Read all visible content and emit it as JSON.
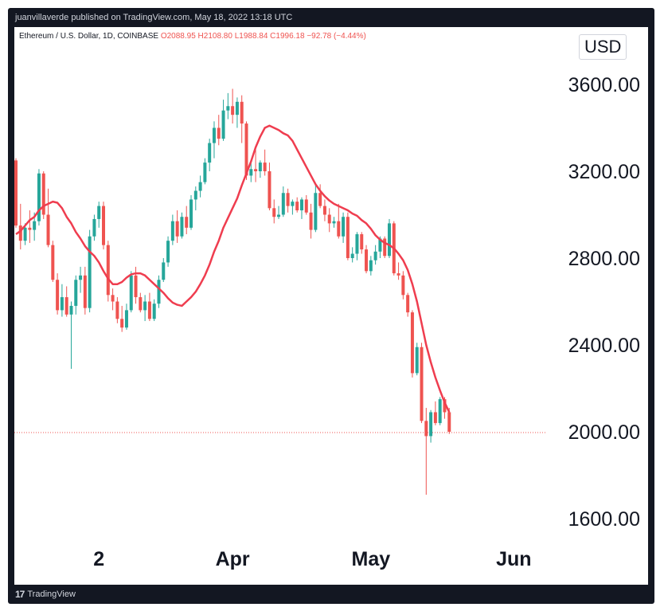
{
  "header": {
    "publisher_line": "juanvillaverde published on TradingView.com, May 18, 2022 13:18 UTC"
  },
  "symbol": {
    "name": "Ethereum / U.S. Dollar, 1D, COINBASE",
    "ohlc": "O2088.95  H2108.80  L1988.84  C1996.18  −92.78 (−4.44%)"
  },
  "currency": "USD",
  "footer": {
    "brand": "TradingView",
    "logo_icon": "tradingview-logo-icon"
  },
  "colors": {
    "up": "#26a69a",
    "down": "#ef5350",
    "ma": "#ef3d4f",
    "price_line": "#ef5350"
  },
  "chart_data": {
    "type": "candlestick",
    "title": "",
    "y_ticks": [
      "3600.00",
      "3200.00",
      "2800.00",
      "2400.00",
      "2000.00",
      "1600.00"
    ],
    "y_tick_values": [
      3600,
      3200,
      2800,
      2400,
      2000,
      1600
    ],
    "x_ticks": [
      {
        "label": "2",
        "index": 18
      },
      {
        "label": "Apr",
        "index": 47
      },
      {
        "label": "May",
        "index": 77
      },
      {
        "label": "Jun",
        "index": 108
      }
    ],
    "ylim": [
      1400,
      3800
    ],
    "last_price": 1996.18,
    "ohlc": [
      [
        3250,
        3260,
        2940,
        2950
      ],
      [
        2950,
        3050,
        2840,
        2880
      ],
      [
        2880,
        2960,
        2860,
        2940
      ],
      [
        2940,
        3020,
        2870,
        2930
      ],
      [
        2930,
        3010,
        2880,
        2970
      ],
      [
        2970,
        3210,
        2950,
        3190
      ],
      [
        3190,
        3200,
        2980,
        3000
      ],
      [
        3000,
        3120,
        2850,
        2860
      ],
      [
        2860,
        2880,
        2690,
        2700
      ],
      [
        2700,
        2730,
        2540,
        2560
      ],
      [
        2560,
        2680,
        2530,
        2620
      ],
      [
        2620,
        2670,
        2530,
        2540
      ],
      [
        2540,
        2600,
        2290,
        2580
      ],
      [
        2580,
        2720,
        2540,
        2700
      ],
      [
        2700,
        2760,
        2640,
        2720
      ],
      [
        2720,
        2760,
        2540,
        2570
      ],
      [
        2570,
        2930,
        2550,
        2900
      ],
      [
        2900,
        3000,
        2880,
        2980
      ],
      [
        2980,
        3060,
        2940,
        3040
      ],
      [
        3040,
        3060,
        2840,
        2860
      ],
      [
        2860,
        2880,
        2600,
        2630
      ],
      [
        2630,
        2660,
        2560,
        2600
      ],
      [
        2600,
        2620,
        2500,
        2520
      ],
      [
        2520,
        2580,
        2460,
        2480
      ],
      [
        2480,
        2590,
        2470,
        2560
      ],
      [
        2560,
        2740,
        2550,
        2720
      ],
      [
        2720,
        2760,
        2590,
        2620
      ],
      [
        2620,
        2640,
        2550,
        2560
      ],
      [
        2560,
        2630,
        2510,
        2600
      ],
      [
        2600,
        2640,
        2510,
        2520
      ],
      [
        2520,
        2610,
        2510,
        2590
      ],
      [
        2590,
        2720,
        2570,
        2700
      ],
      [
        2700,
        2800,
        2690,
        2780
      ],
      [
        2780,
        2900,
        2760,
        2880
      ],
      [
        2880,
        3000,
        2860,
        2970
      ],
      [
        2970,
        3020,
        2870,
        2900
      ],
      [
        2900,
        3010,
        2890,
        2990
      ],
      [
        2990,
        3040,
        2910,
        2940
      ],
      [
        2940,
        3090,
        2930,
        3070
      ],
      [
        3070,
        3130,
        3020,
        3110
      ],
      [
        3110,
        3180,
        3080,
        3150
      ],
      [
        3150,
        3260,
        3140,
        3240
      ],
      [
        3240,
        3350,
        3200,
        3330
      ],
      [
        3330,
        3430,
        3260,
        3400
      ],
      [
        3400,
        3460,
        3320,
        3350
      ],
      [
        3350,
        3530,
        3340,
        3480
      ],
      [
        3480,
        3560,
        3440,
        3500
      ],
      [
        3500,
        3580,
        3420,
        3460
      ],
      [
        3460,
        3540,
        3400,
        3520
      ],
      [
        3520,
        3550,
        3330,
        3420
      ],
      [
        3420,
        3430,
        3160,
        3180
      ],
      [
        3180,
        3240,
        3150,
        3210
      ],
      [
        3210,
        3300,
        3150,
        3200
      ],
      [
        3200,
        3250,
        3170,
        3240
      ],
      [
        3240,
        3300,
        3180,
        3200
      ],
      [
        3200,
        3240,
        3020,
        3030
      ],
      [
        3030,
        3070,
        2960,
        2990
      ],
      [
        2990,
        3040,
        2980,
        3000
      ],
      [
        3000,
        3130,
        2990,
        3100
      ],
      [
        3100,
        3120,
        3010,
        3040
      ],
      [
        3040,
        3070,
        3000,
        3060
      ],
      [
        3060,
        3080,
        3010,
        3020
      ],
      [
        3020,
        3080,
        2980,
        3070
      ],
      [
        3070,
        3090,
        3000,
        3010
      ],
      [
        3010,
        3050,
        2890,
        2930
      ],
      [
        2930,
        3140,
        2920,
        3100
      ],
      [
        3100,
        3140,
        3030,
        3040
      ],
      [
        3040,
        3070,
        2970,
        3000
      ],
      [
        3000,
        3030,
        2920,
        2960
      ],
      [
        2960,
        2990,
        2940,
        2970
      ],
      [
        2970,
        3050,
        2890,
        2900
      ],
      [
        2900,
        3010,
        2870,
        2990
      ],
      [
        2990,
        3010,
        2790,
        2800
      ],
      [
        2800,
        2850,
        2780,
        2820
      ],
      [
        2820,
        2920,
        2790,
        2910
      ],
      [
        2910,
        2920,
        2820,
        2840
      ],
      [
        2840,
        2860,
        2730,
        2740
      ],
      [
        2740,
        2810,
        2720,
        2790
      ],
      [
        2790,
        2860,
        2770,
        2830
      ],
      [
        2830,
        2900,
        2800,
        2890
      ],
      [
        2890,
        2900,
        2800,
        2810
      ],
      [
        2810,
        2980,
        2800,
        2960
      ],
      [
        2960,
        2970,
        2720,
        2730
      ],
      [
        2730,
        2780,
        2700,
        2720
      ],
      [
        2720,
        2740,
        2610,
        2630
      ],
      [
        2630,
        2640,
        2530,
        2550
      ],
      [
        2550,
        2560,
        2250,
        2270
      ],
      [
        2270,
        2410,
        2260,
        2390
      ],
      [
        2390,
        2410,
        2040,
        2050
      ],
      [
        2050,
        2110,
        1710,
        1980
      ],
      [
        1980,
        2100,
        1950,
        2090
      ],
      [
        2090,
        2140,
        2030,
        2040
      ],
      [
        2040,
        2160,
        2030,
        2150
      ],
      [
        2150,
        2160,
        2060,
        2090
      ],
      [
        2090,
        2110,
        1990,
        2000
      ]
    ],
    "ma_series": [
      2910,
      2925,
      2950,
      2975,
      2990,
      3020,
      3040,
      3050,
      3060,
      3055,
      3030,
      2990,
      2960,
      2920,
      2890,
      2855,
      2830,
      2810,
      2780,
      2740,
      2705,
      2680,
      2680,
      2690,
      2710,
      2725,
      2730,
      2730,
      2720,
      2700,
      2680,
      2660,
      2640,
      2615,
      2595,
      2585,
      2580,
      2600,
      2620,
      2645,
      2680,
      2720,
      2770,
      2830,
      2880,
      2940,
      2985,
      3030,
      3075,
      3135,
      3190,
      3245,
      3310,
      3360,
      3400,
      3410,
      3400,
      3390,
      3375,
      3365,
      3340,
      3300,
      3260,
      3220,
      3180,
      3140,
      3110,
      3085,
      3065,
      3050,
      3040,
      3030,
      3020,
      3005,
      2995,
      2975,
      2960,
      2935,
      2905,
      2885,
      2870,
      2860,
      2845,
      2820,
      2790,
      2745,
      2680,
      2600,
      2500,
      2400,
      2320,
      2250,
      2190,
      2135,
      2090
    ]
  }
}
